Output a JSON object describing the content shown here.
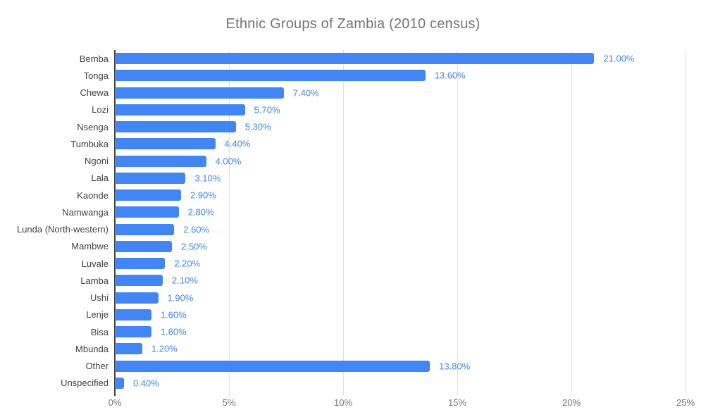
{
  "title": "Ethnic Groups of Zambia (2010 census)",
  "colors": {
    "bar": "#4285f4",
    "value_label": "#4285f4",
    "title": "#757575",
    "category_label": "#424242",
    "tick_label": "#757575",
    "gridline": "#e0e0e0",
    "axis_line": "#424242"
  },
  "chart_data": {
    "type": "bar",
    "orientation": "horizontal",
    "title": "Ethnic Groups of Zambia (2010 census)",
    "xlabel": "",
    "ylabel": "",
    "categories": [
      "Bemba",
      "Tonga",
      "Chewa",
      "Lozi",
      "Nsenga",
      "Tumbuka",
      "Ngoni",
      "Lala",
      "Kaonde",
      "Namwanga",
      "Lunda (North-western)",
      "Mambwe",
      "Luvale",
      "Lamba",
      "Ushi",
      "Lenje",
      "Bisa",
      "Mbunda",
      "Other",
      "Unspecified"
    ],
    "values": [
      21.0,
      13.6,
      7.4,
      5.7,
      5.3,
      4.4,
      4.0,
      3.1,
      2.9,
      2.8,
      2.6,
      2.5,
      2.2,
      2.1,
      1.9,
      1.6,
      1.6,
      1.2,
      13.8,
      0.4
    ],
    "value_labels": [
      "21.00%",
      "13.60%",
      "7.40%",
      "5.70%",
      "5.30%",
      "4.40%",
      "4.00%",
      "3.10%",
      "2.90%",
      "2.80%",
      "2.60%",
      "2.50%",
      "2.20%",
      "2.10%",
      "1.90%",
      "1.60%",
      "1.60%",
      "1.20%",
      "13.80%",
      "0.40%"
    ],
    "xlim": [
      0,
      25
    ],
    "x_ticks": [
      0,
      5,
      10,
      15,
      20,
      25
    ],
    "x_tick_labels": [
      "0%",
      "5%",
      "10%",
      "15%",
      "20%",
      "25%"
    ],
    "grid": true,
    "legend": "none"
  }
}
